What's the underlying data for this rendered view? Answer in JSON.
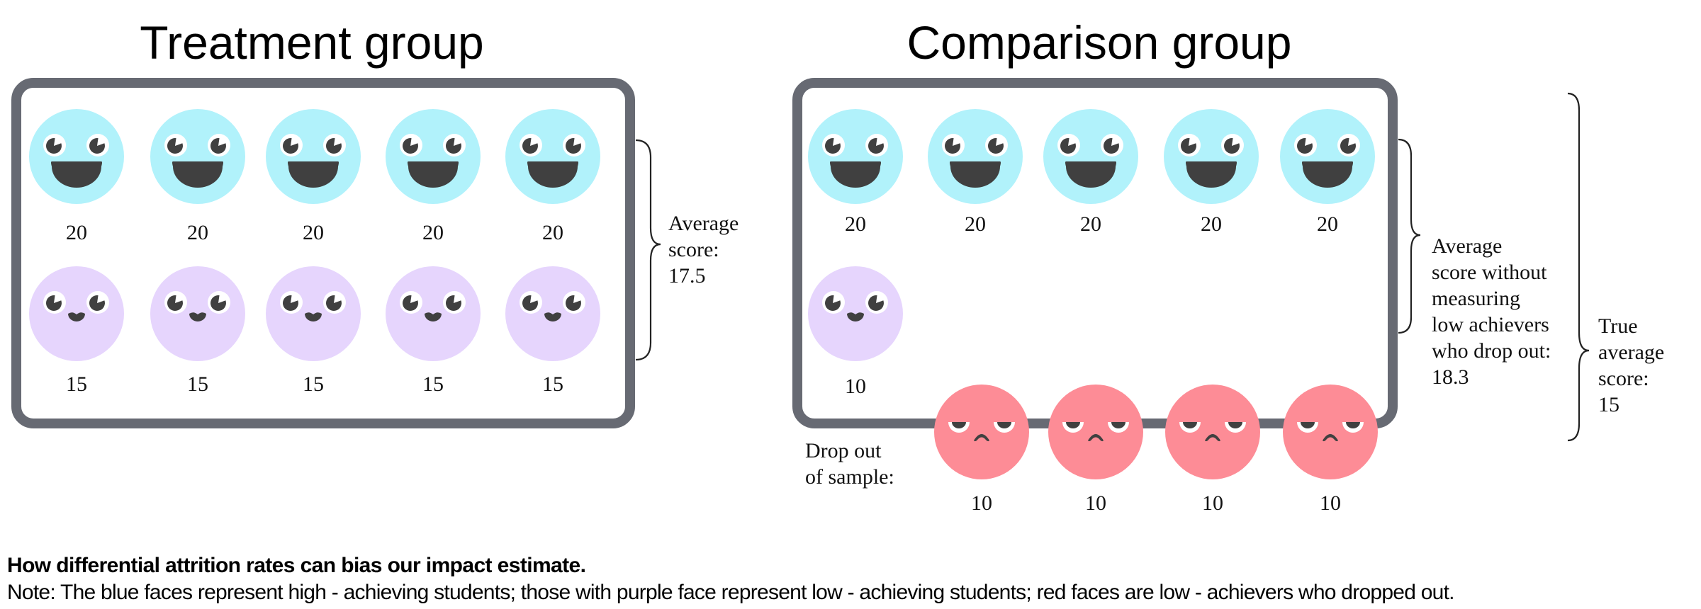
{
  "colors": {
    "high_achiever": "#b1f2fb",
    "low_achiever": "#e6d5fd",
    "dropped_out": "#fd8c96",
    "feature": "#404040",
    "box_border": "#676a73"
  },
  "treatment": {
    "title": "Treatment group",
    "rows": [
      {
        "type": "high",
        "icon": "happy-face-icon",
        "scores": [
          "20",
          "20",
          "20",
          "20",
          "20"
        ]
      },
      {
        "type": "low",
        "icon": "content-face-icon",
        "scores": [
          "15",
          "15",
          "15",
          "15",
          "15"
        ]
      }
    ],
    "annotation": [
      "Average",
      "score:",
      "17.5"
    ]
  },
  "comparison": {
    "title": "Comparison group",
    "rows": [
      {
        "type": "high",
        "icon": "happy-face-icon",
        "scores": [
          "20",
          "20",
          "20",
          "20",
          "20"
        ]
      },
      {
        "type": "low",
        "icon": "content-face-icon",
        "scores": [
          "10"
        ]
      }
    ],
    "dropout": {
      "label": [
        "Drop out",
        "of sample:"
      ],
      "type": "dropped",
      "icon": "sad-face-icon",
      "scores": [
        "10",
        "10",
        "10",
        "10"
      ]
    },
    "annotation_measured": [
      "Average",
      "score without",
      "measuring",
      "low achievers",
      "who drop out:",
      "18.3"
    ],
    "annotation_true": [
      "True",
      "average",
      "score:",
      "15"
    ]
  },
  "caption": {
    "title": "How differential attrition rates can bias our impact estimate.",
    "note": "Note: The blue faces represent high - achieving students; those with purple face represent low - achieving students; red faces are low - achievers who dropped out."
  }
}
